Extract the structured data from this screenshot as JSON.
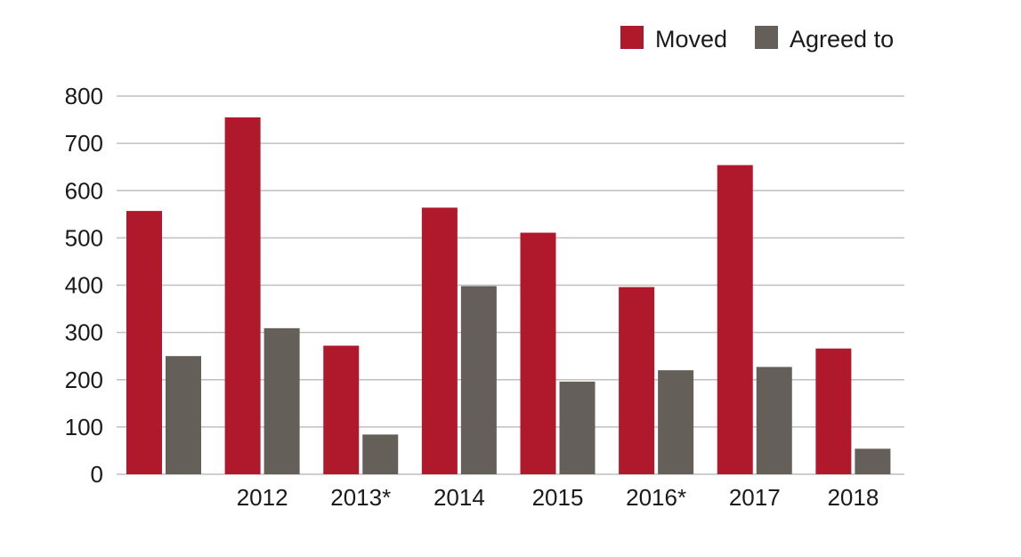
{
  "chart_data": {
    "type": "bar",
    "title": "",
    "xlabel": "",
    "ylabel": "",
    "categories": [
      "",
      "2012",
      "2013*",
      "2014",
      "2015",
      "2016*",
      "2017",
      "2018"
    ],
    "series": [
      {
        "name": "Moved",
        "color": "#b0192c",
        "values": [
          557,
          755,
          272,
          564,
          511,
          396,
          654,
          266
        ]
      },
      {
        "name": "Agreed to",
        "color": "#655f59",
        "values": [
          250,
          309,
          84,
          398,
          196,
          220,
          227,
          54
        ]
      }
    ],
    "ylim": [
      0,
      800
    ],
    "yticks": [
      "0",
      "100",
      "200",
      "300",
      "400",
      "500",
      "600",
      "700",
      "800"
    ],
    "grid": true,
    "legend_position": "top-right",
    "gridline_color": "#bfbfbf"
  }
}
